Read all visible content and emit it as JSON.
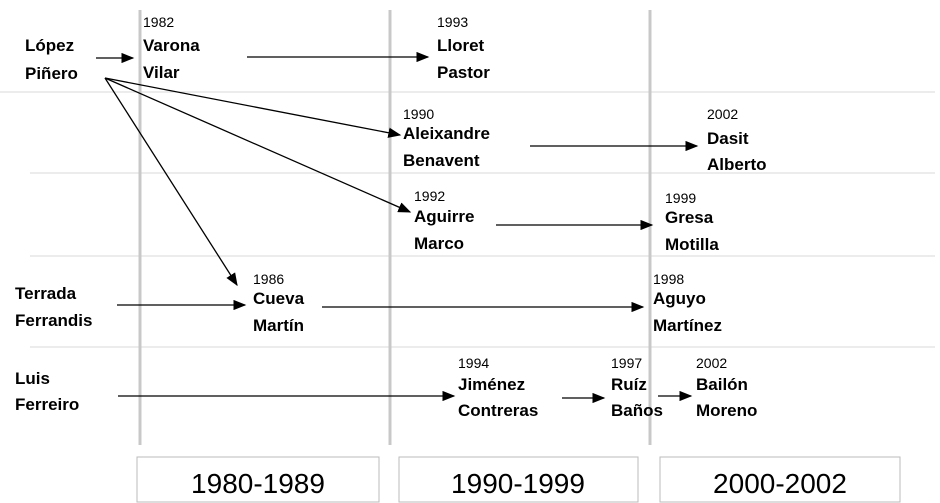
{
  "nodes": [
    {
      "lines": [
        "López",
        "Piñero"
      ]
    },
    {
      "year": 1982,
      "lines": [
        "Varona",
        "Vilar"
      ]
    },
    {
      "year": 1993,
      "lines": [
        "Lloret",
        "Pastor"
      ]
    },
    {
      "year": 1990,
      "lines": [
        "Aleixandre",
        "Benavent"
      ]
    },
    {
      "year": 2002,
      "lines": [
        "Dasit",
        "Alberto"
      ]
    },
    {
      "year": 1992,
      "lines": [
        "Aguirre",
        "Marco"
      ]
    },
    {
      "year": 1999,
      "lines": [
        "Gresa",
        "Motilla"
      ]
    },
    {
      "lines": [
        "Terrada",
        "Ferrandis"
      ]
    },
    {
      "year": 1986,
      "lines": [
        "Cueva",
        "Martín"
      ]
    },
    {
      "year": 1998,
      "lines": [
        "Aguyo",
        "Martínez"
      ]
    },
    {
      "lines": [
        "Luis",
        "Ferreiro"
      ]
    },
    {
      "year": 1994,
      "lines": [
        "Jiménez",
        "Contreras"
      ]
    },
    {
      "year": 1997,
      "lines": [
        "Ruíz",
        "Baños"
      ]
    },
    {
      "year": 2002,
      "lines": [
        "Bailón",
        "Moreno"
      ]
    }
  ],
  "periods": [
    "1980-1989",
    "1990-1999",
    "2000-2002"
  ]
}
